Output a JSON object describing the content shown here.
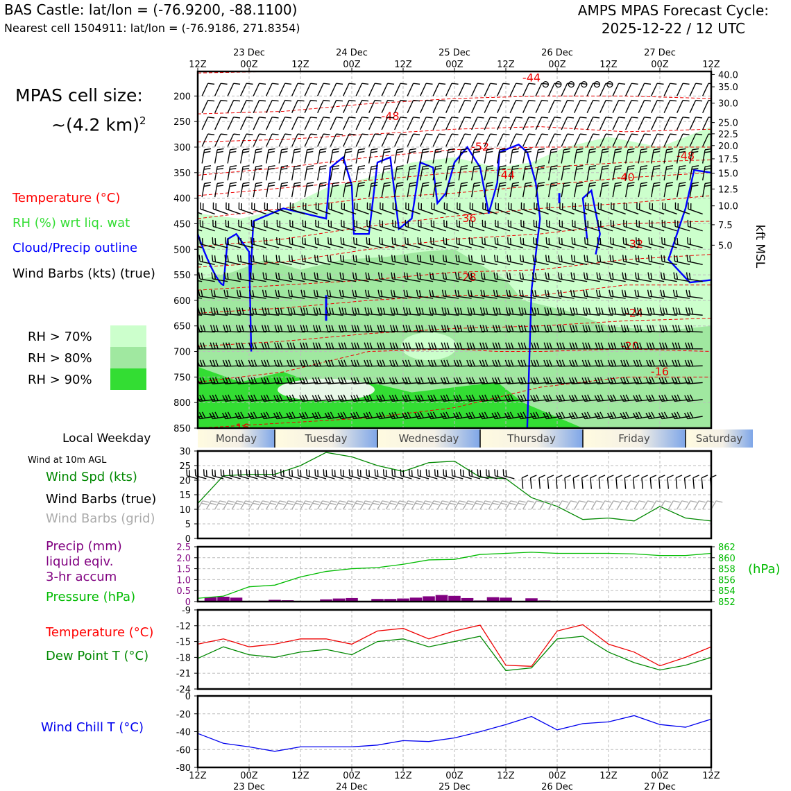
{
  "header": {
    "site_line": "BAS Castle: lat/lon = (-76.9200, -88.1100)",
    "cell_line": "Nearest cell 1504911: lat/lon = (-76.9186, 271.8354)",
    "cycle_line1": "AMPS MPAS Forecast Cycle:",
    "cycle_line2": "2025-12-22 / 12 UTC"
  },
  "cell_size": {
    "label": "MPAS cell size:",
    "value": "~(4.2 km)",
    "exponent": "2"
  },
  "legend": {
    "temperature": "Temperature (°C)",
    "rh": "RH (%) wrt liq. wat",
    "cloud": "Cloud/Precip outline",
    "barbs": "Wind Barbs (kts) (true)",
    "rh_levels": [
      "RH > 70%",
      "RH > 80%",
      "RH > 90%"
    ],
    "rh_colors": [
      "#ccffcc",
      "#a0e8a0",
      "#33dd33"
    ]
  },
  "weekday": {
    "label": "Local Weekday",
    "days": [
      "Monday",
      "Tuesday",
      "Wednesday",
      "Thursday",
      "Friday",
      "Saturday"
    ]
  },
  "wind_panel_labels": {
    "title": "Wind at 10m AGL",
    "speed": "Wind Spd (kts)",
    "barbs_true": "Wind Barbs (true)",
    "barbs_grid": "Wind Barbs (grid)"
  },
  "precip_labels": {
    "l1": "Precip (mm)",
    "l2": "liquid eqiv.",
    "l3": "3-hr accum",
    "pressure": "Pressure (hPa)",
    "right_unit": "(hPa)"
  },
  "temp_labels": {
    "temp": "Temperature (°C)",
    "dew": "Dew Point T (°C)"
  },
  "chill_labels": {
    "chill": "Wind Chill T (°C)"
  },
  "colors": {
    "temperature": "#ff0000",
    "green": "#008800",
    "pressure": "#00bb00",
    "cloud": "#0000ff",
    "precip": "#800080",
    "chill": "#0000ee",
    "grid_barb": "#aaaaaa"
  },
  "time_axis": {
    "ticks": [
      "12Z",
      "00Z",
      "12Z",
      "00Z",
      "12Z",
      "00Z",
      "12Z",
      "00Z",
      "12Z",
      "00Z",
      "12Z"
    ],
    "dates": [
      "23 Dec",
      "24 Dec",
      "25 Dec",
      "26 Dec",
      "27 Dec"
    ]
  },
  "chart_data": [
    {
      "type": "heatmap",
      "name_note": "cross-section",
      "y_left_ticks": [
        "200",
        "250",
        "300",
        "350",
        "400",
        "450",
        "500",
        "550",
        "600",
        "650",
        "700",
        "750",
        "800",
        "850"
      ],
      "y_left_values": [
        200,
        250,
        300,
        350,
        400,
        450,
        500,
        550,
        600,
        650,
        700,
        750,
        800,
        850
      ],
      "y_right_ticks": [
        "40.0",
        "35.0",
        "30.0",
        "25.0",
        "22.5",
        "20.0",
        "17.5",
        "15.0",
        "12.5",
        "10.0",
        "7.5",
        "5.0"
      ],
      "y_right_pressure": [
        158,
        182,
        214,
        252,
        274,
        297,
        323,
        351,
        382,
        415,
        452,
        492
      ],
      "y_right_label": "kft MSL",
      "ylim": [
        152,
        850
      ],
      "xlim_hours": [
        0,
        120
      ],
      "temperature_contour_labels": [
        "-44",
        "-48",
        "-52",
        "-48",
        "-44",
        "-40",
        "-36",
        "-32",
        "-28",
        "-24",
        "-20",
        "-16",
        "-16"
      ]
    },
    {
      "type": "line",
      "name_note": "wind-10m",
      "ylim": [
        0,
        30
      ],
      "yticks": [
        "0",
        "5",
        "10",
        "15",
        "20",
        "25",
        "30"
      ],
      "x_hours": [
        0,
        6,
        12,
        18,
        24,
        30,
        36,
        42,
        48,
        54,
        60,
        66,
        72,
        78,
        84,
        90,
        96,
        102,
        108,
        114,
        120
      ],
      "series": [
        {
          "values": [
            12,
            21.5,
            22,
            22,
            25,
            29.5,
            28,
            25,
            23,
            26,
            26.5,
            21,
            20.5,
            14,
            11,
            6.5,
            7,
            6,
            11,
            7,
            6
          ]
        }
      ]
    },
    {
      "type": "bar",
      "name_note": "precip-pressure",
      "ylim_left": [
        0,
        2.5
      ],
      "yticks_left": [
        "0",
        "0.5",
        "1.0",
        "1.5",
        "2.0",
        "2.5"
      ],
      "ylim_right": [
        852,
        862
      ],
      "yticks_right": [
        "852",
        "854",
        "856",
        "858",
        "860",
        "862"
      ],
      "precip_x_hours": [
        3,
        6,
        9,
        18,
        21,
        30,
        33,
        36,
        42,
        45,
        48,
        51,
        54,
        57,
        60,
        63,
        66,
        69,
        72,
        75,
        78,
        81
      ],
      "precip_values": [
        0.2,
        0.22,
        0.18,
        0.08,
        0.06,
        0.1,
        0.14,
        0.16,
        0.12,
        0.12,
        0.14,
        0.18,
        0.24,
        0.3,
        0.26,
        0.16,
        0.05,
        0.2,
        0.18,
        0.03,
        0.15,
        0.05
      ],
      "pressure_x_hours": [
        0,
        6,
        12,
        18,
        24,
        30,
        36,
        42,
        48,
        54,
        60,
        66,
        72,
        78,
        84,
        90,
        96,
        102,
        108,
        114,
        120
      ],
      "pressure_values": [
        852.6,
        853.0,
        854.7,
        855.0,
        856.5,
        857.5,
        858.0,
        858.2,
        858.8,
        859.6,
        859.7,
        860.6,
        860.8,
        861.0,
        860.8,
        860.8,
        860.8,
        860.7,
        860.4,
        860.4,
        860.8
      ]
    },
    {
      "type": "line",
      "name_note": "temperature-dewpoint",
      "ylim": [
        -24,
        -9
      ],
      "yticks": [
        "-9",
        "-12",
        "-15",
        "-18",
        "-21",
        "-24"
      ],
      "x_hours": [
        0,
        6,
        12,
        18,
        24,
        30,
        36,
        42,
        48,
        54,
        60,
        66,
        72,
        78,
        84,
        90,
        96,
        102,
        108,
        114,
        120
      ],
      "series": [
        {
          "values": [
            -15.5,
            -14.5,
            -16,
            -15.5,
            -14.5,
            -14.5,
            -15.5,
            -13,
            -12.5,
            -14.5,
            -13,
            -11.9,
            -19.5,
            -19.7,
            -13,
            -11.8,
            -15.5,
            -17,
            -19.6,
            -18,
            -16
          ]
        },
        {
          "values": [
            -18.2,
            -16,
            -17.5,
            -18,
            -17,
            -16.5,
            -17.5,
            -15,
            -14.5,
            -16,
            -15,
            -14,
            -20.5,
            -20,
            -14.5,
            -14,
            -17,
            -19,
            -20.4,
            -19.5,
            -18
          ]
        }
      ]
    },
    {
      "type": "line",
      "name_note": "wind-chill",
      "ylim": [
        -80,
        0
      ],
      "yticks": [
        "0",
        "-20",
        "-40",
        "-60",
        "-80"
      ],
      "x_hours": [
        0,
        6,
        12,
        18,
        24,
        30,
        36,
        42,
        48,
        54,
        60,
        66,
        72,
        78,
        84,
        90,
        96,
        102,
        108,
        114,
        120
      ],
      "series": [
        {
          "values": [
            -42,
            -53,
            -57,
            -62,
            -57,
            -57,
            -57,
            -55,
            -50,
            -51,
            -47,
            -40,
            -32,
            -23,
            -38,
            -31,
            -29,
            -22,
            -32,
            -35,
            -26
          ]
        }
      ]
    }
  ]
}
